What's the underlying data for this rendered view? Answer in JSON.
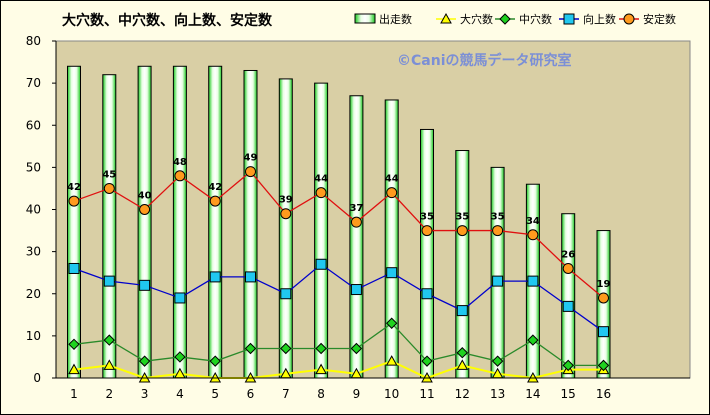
{
  "chart_data": {
    "type": "bar",
    "title": "大穴数、中穴数、向上数、安定数",
    "watermark": "©Caniの競馬データ研究室",
    "categories": [
      "1",
      "2",
      "3",
      "4",
      "5",
      "6",
      "7",
      "8",
      "9",
      "10",
      "11",
      "12",
      "13",
      "14",
      "15",
      "16"
    ],
    "ylim": [
      0,
      80
    ],
    "yticks": [
      0,
      10,
      20,
      30,
      40,
      50,
      60,
      70,
      80
    ],
    "grid": false,
    "legend_position": "top-right",
    "plot_background": "#d9cfa5",
    "series": [
      {
        "name": "出走数",
        "kind": "bar",
        "color": "#19c81e",
        "fill": "#d8ffd2",
        "values": [
          74,
          72,
          74,
          74,
          74,
          73,
          71,
          70,
          67,
          66,
          59,
          54,
          50,
          46,
          39,
          35
        ]
      },
      {
        "name": "大穴数",
        "kind": "line",
        "marker": "triangle",
        "color": "#ffff00",
        "marker_color": "#ffff00",
        "values": [
          2,
          3,
          0,
          1,
          0,
          0,
          1,
          2,
          1,
          4,
          0,
          3,
          1,
          0,
          2,
          2
        ]
      },
      {
        "name": "中穴数",
        "kind": "line",
        "marker": "diamond",
        "color": "#2a8a2a",
        "marker_color": "#1fd21f",
        "values": [
          8,
          9,
          4,
          5,
          4,
          7,
          7,
          7,
          7,
          13,
          4,
          6,
          4,
          9,
          3,
          3
        ]
      },
      {
        "name": "向上数",
        "kind": "line",
        "marker": "square",
        "color": "#0000cc",
        "marker_color": "#20c8f0",
        "values": [
          26,
          23,
          22,
          19,
          24,
          24,
          20,
          27,
          21,
          25,
          20,
          16,
          23,
          23,
          17,
          11
        ]
      },
      {
        "name": "安定数",
        "kind": "line",
        "marker": "circle",
        "color": "#e01010",
        "marker_color": "#ff9a1e",
        "values": [
          42,
          45,
          40,
          48,
          42,
          49,
          39,
          44,
          37,
          44,
          35,
          35,
          35,
          34,
          26,
          19
        ],
        "data_labels": true
      }
    ]
  }
}
